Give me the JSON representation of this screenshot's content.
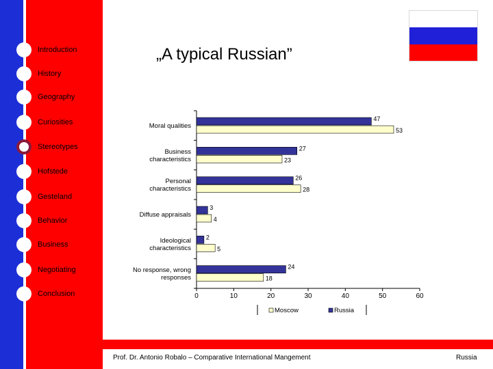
{
  "nav": {
    "items": [
      {
        "label": "Introduction",
        "active": false
      },
      {
        "label": "History",
        "active": false
      },
      {
        "label": "Geography",
        "active": false
      },
      {
        "label": "Curiosities",
        "active": false
      },
      {
        "label": "Stereotypes",
        "active": true
      },
      {
        "label": "Hofstede",
        "active": false
      },
      {
        "label": "Gesteland",
        "active": false
      },
      {
        "label": "Behavior",
        "active": false
      },
      {
        "label": "Business",
        "active": false
      },
      {
        "label": "Negotiating",
        "active": false
      },
      {
        "label": "Conclusion",
        "active": false
      }
    ]
  },
  "slide": {
    "title": "„A typical Russian”"
  },
  "colors": {
    "left_blue": "#1c2fd6",
    "left_red": "#ff0000",
    "moscow": "#ffffcc",
    "russia": "#333399",
    "active_dot": "#8b1a3a"
  },
  "chart_data": {
    "type": "bar",
    "orientation": "horizontal",
    "categories": [
      [
        "Moral qualities"
      ],
      [
        "Business",
        "characteristics"
      ],
      [
        "Personal",
        "characteristics"
      ],
      [
        "Diffuse appraisals"
      ],
      [
        "Ideological",
        "characteristics"
      ],
      [
        "No response, wrong",
        "responses"
      ]
    ],
    "series": [
      {
        "name": "Russia",
        "values": [
          47,
          27,
          26,
          3,
          2,
          24
        ]
      },
      {
        "name": "Moscow",
        "values": [
          53,
          23,
          28,
          4,
          5,
          18
        ]
      }
    ],
    "data_labels": {
      "Russia": [
        "47",
        "27",
        "26",
        "3",
        "2",
        "24"
      ],
      "Moscow": [
        "53",
        "23",
        "28",
        "4",
        "5",
        "18"
      ]
    },
    "xlim": [
      0,
      60
    ],
    "xticks": [
      0,
      10,
      20,
      30,
      40,
      50,
      60
    ],
    "legend": [
      "Moscow",
      "Russia"
    ],
    "legend_position": "bottom",
    "grid": false
  },
  "footer": {
    "left": "Prof. Dr. Antonio Robalo – Comparative International Mangement",
    "right": "Russia"
  }
}
